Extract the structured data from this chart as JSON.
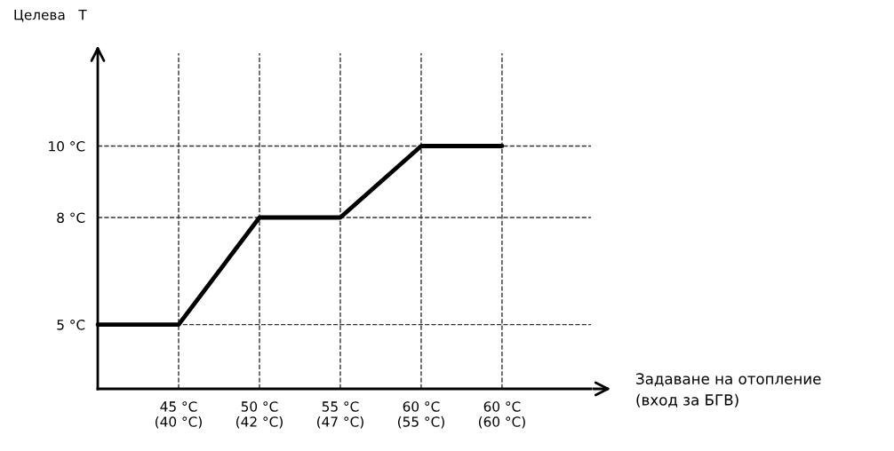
{
  "chart_data": {
    "type": "line",
    "ylabel": "Целева   T",
    "xlabel": "Задаване на отопление\n(вход за БГВ)",
    "categories": [
      null,
      "45 °C\n(40 °C)",
      "50 °C\n(42 °C)",
      "55 °C\n(47 °C)",
      "60 °C\n(55 °C)",
      "60 °C\n(60 °C)"
    ],
    "series": [
      {
        "color": "#000000",
        "values": [
          5,
          5,
          8,
          8,
          10,
          10
        ]
      }
    ],
    "ylim": [
      3.2,
      12.6
    ],
    "yticks": [
      {
        "value": 5,
        "label": "5 °C"
      },
      {
        "value": 8,
        "label": "8 °C"
      },
      {
        "value": 10,
        "label": "10 °C"
      }
    ],
    "grid": true,
    "line_style": "solid",
    "marker": "none",
    "legend": false
  }
}
